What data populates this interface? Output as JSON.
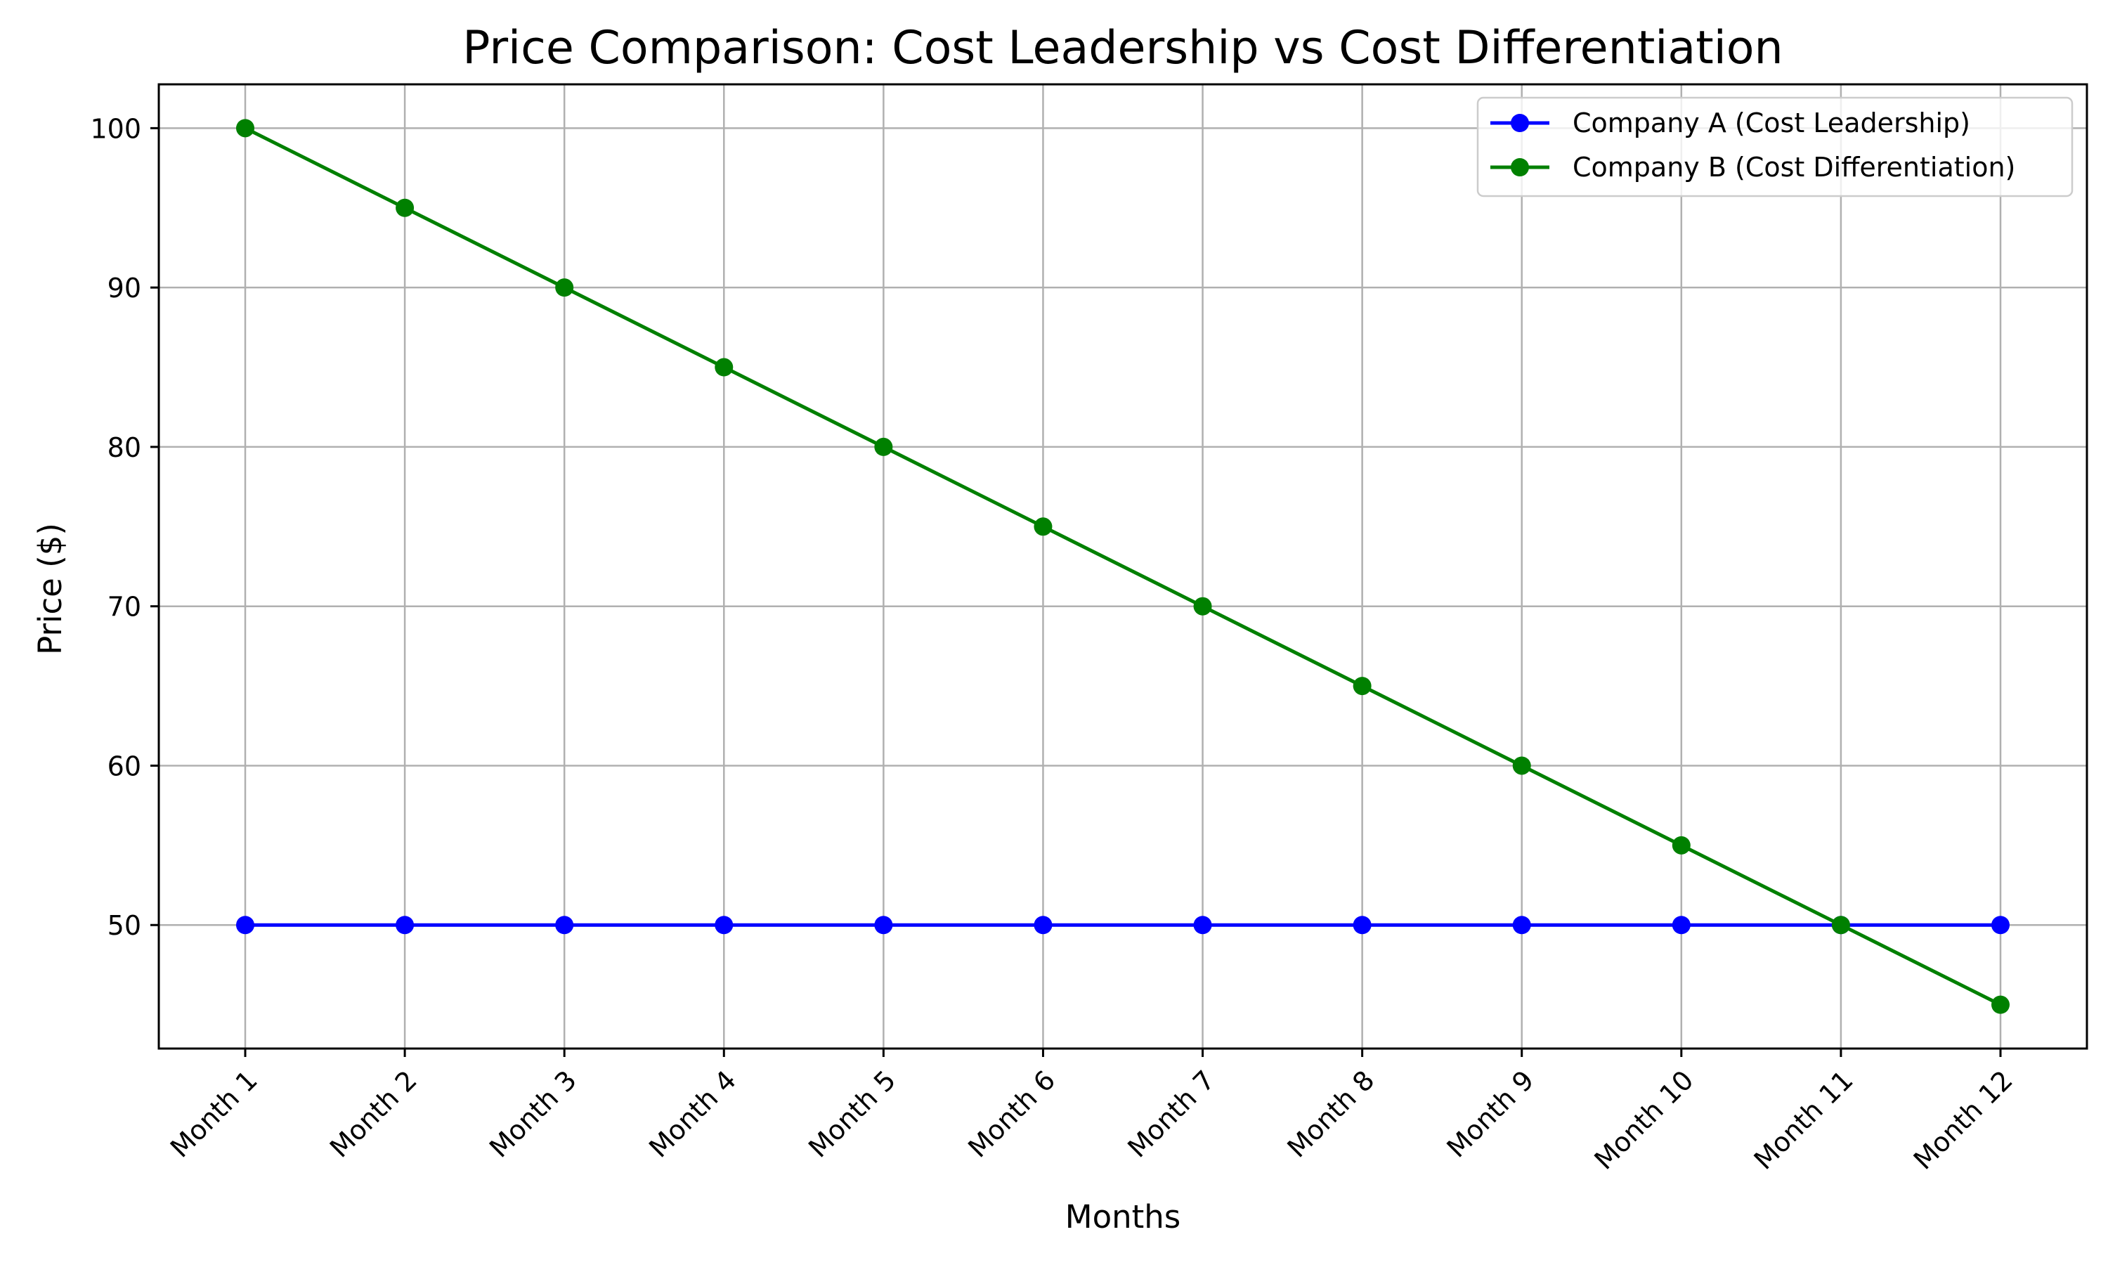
{
  "chart_data": {
    "type": "line",
    "title": "Price Comparison: Cost Leadership vs Cost Differentiation",
    "xlabel": "Months",
    "ylabel": "Price ($)",
    "categories": [
      "Month 1",
      "Month 2",
      "Month 3",
      "Month 4",
      "Month 5",
      "Month 6",
      "Month 7",
      "Month 8",
      "Month 9",
      "Month 10",
      "Month 11",
      "Month 12"
    ],
    "yticks": [
      50,
      60,
      70,
      80,
      90,
      100
    ],
    "ylim": [
      42.25,
      102.75
    ],
    "grid": true,
    "legend_position": "top-right",
    "series": [
      {
        "name": "Company A (Cost Leadership)",
        "color": "#0000ff",
        "marker": "circle",
        "values": [
          50,
          50,
          50,
          50,
          50,
          50,
          50,
          50,
          50,
          50,
          50,
          50
        ]
      },
      {
        "name": "Company B (Cost Differentiation)",
        "color": "#008000",
        "marker": "circle",
        "values": [
          100,
          95,
          90,
          85,
          80,
          75,
          70,
          65,
          60,
          55,
          50,
          45
        ]
      }
    ]
  }
}
